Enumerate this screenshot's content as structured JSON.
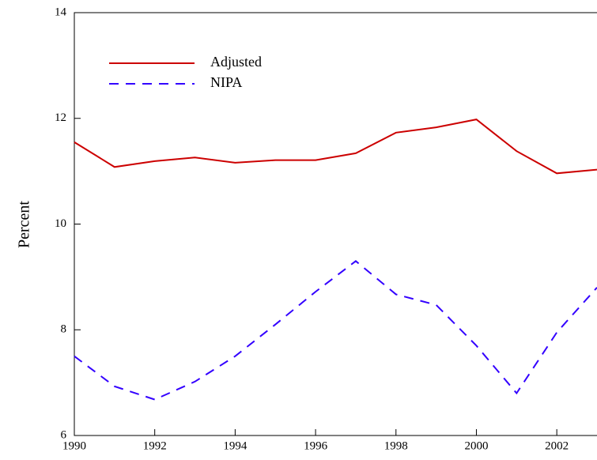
{
  "chart_data": {
    "type": "line",
    "y_label": "Percent",
    "x": [
      1990,
      1991,
      1992,
      1993,
      1994,
      1995,
      1996,
      1997,
      1998,
      1999,
      2000,
      2001,
      2002,
      2003
    ],
    "series": [
      {
        "name": "Adjusted",
        "color": "#cc0000",
        "dash": false,
        "values": [
          11.55,
          11.08,
          11.19,
          11.26,
          11.16,
          11.21,
          11.21,
          11.34,
          11.73,
          11.83,
          11.98,
          11.38,
          10.96,
          11.03
        ]
      },
      {
        "name": "NIPA",
        "color": "#3300ff",
        "dash": true,
        "values": [
          7.5,
          6.93,
          6.68,
          7.02,
          7.5,
          8.1,
          8.72,
          9.3,
          8.67,
          8.47,
          7.7,
          6.8,
          7.95,
          8.8
        ]
      }
    ],
    "xlim": [
      1990,
      2003
    ],
    "xticks": [
      1990,
      1992,
      1994,
      1996,
      1998,
      2000,
      2002
    ],
    "ylim": [
      6,
      14
    ],
    "yticks": [
      6,
      8,
      10,
      12,
      14
    ],
    "legend": "upper left"
  }
}
